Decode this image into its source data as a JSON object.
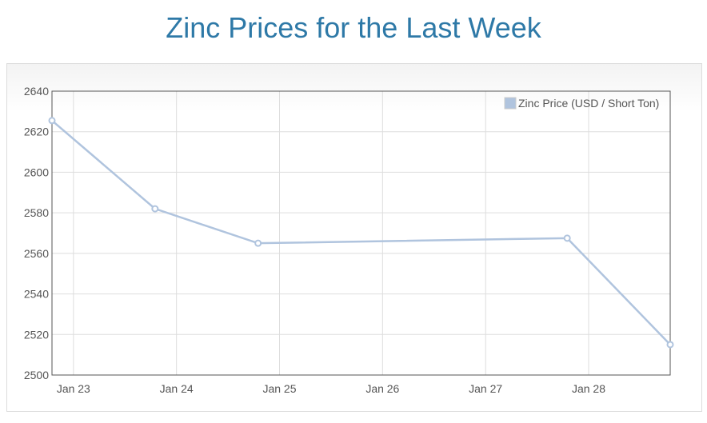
{
  "chart_data": {
    "type": "line",
    "title": "Zinc Prices for the Last Week",
    "x": [
      "2020-01-22T19:00",
      "2020-01-23T19:00",
      "2020-01-24T19:00",
      "2020-01-27T19:00",
      "2020-01-28T19:00"
    ],
    "x_display_ticks": [
      "Jan 23",
      "Jan 24",
      "Jan 25",
      "Jan 26",
      "Jan 27",
      "Jan 28"
    ],
    "series": [
      {
        "name": "Zinc Price (USD / Short Ton)",
        "values": [
          2625.5,
          2582,
          2565,
          2567.5,
          2515
        ]
      }
    ],
    "ylim": [
      2500,
      2640
    ],
    "y_ticks": [
      "2640",
      "2620",
      "2600",
      "2580",
      "2560",
      "2540",
      "2520",
      "2500"
    ],
    "series_color": "#b0c4de",
    "grid": true,
    "legend_position": "top-right"
  }
}
